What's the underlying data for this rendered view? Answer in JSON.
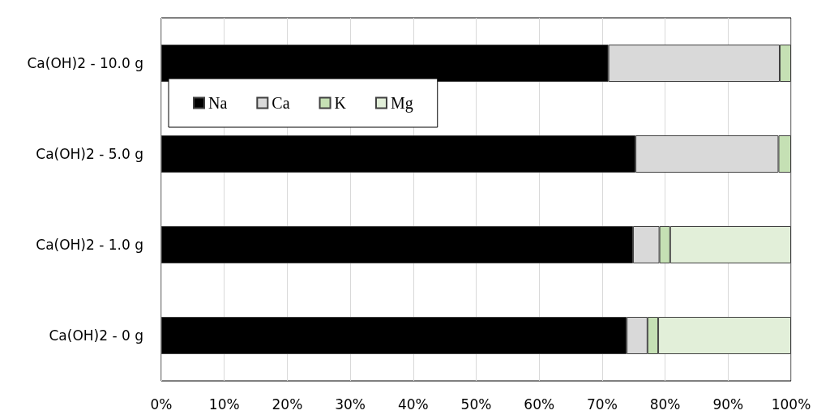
{
  "chart_data": {
    "type": "bar",
    "orientation": "horizontal",
    "stacked": true,
    "categories": [
      "Ca(OH)2 - 10.0 g",
      "Ca(OH)2 - 5.0 g",
      "Ca(OH)2 - 1.0 g",
      "Ca(OH)2 - 0 g"
    ],
    "series": [
      {
        "name": "Na",
        "color": "#000000",
        "values": [
          71.0,
          75.3,
          74.9,
          73.9
        ]
      },
      {
        "name": "Ca",
        "color": "#d9d9d9",
        "values": [
          27.2,
          22.7,
          4.2,
          3.3
        ]
      },
      {
        "name": "K",
        "color": "#c5e0b4",
        "values": [
          1.8,
          2.0,
          1.7,
          1.7
        ]
      },
      {
        "name": "Mg",
        "color": "#e2efd9",
        "values": [
          null,
          null,
          19.2,
          21.1
        ]
      }
    ],
    "xlim": [
      0,
      100
    ],
    "xticks": [
      {
        "value": 0,
        "label": "0%"
      },
      {
        "value": 10,
        "label": "10%"
      },
      {
        "value": 20,
        "label": "20%"
      },
      {
        "value": 30,
        "label": "30%"
      },
      {
        "value": 40,
        "label": "40%"
      },
      {
        "value": 50,
        "label": "50%"
      },
      {
        "value": 60,
        "label": "60%"
      },
      {
        "value": 70,
        "label": "70%"
      },
      {
        "value": 80,
        "label": "80%"
      },
      {
        "value": 90,
        "label": "90%"
      },
      {
        "value": 100,
        "label": "100%"
      }
    ],
    "grid": "x",
    "legend": "top left"
  }
}
